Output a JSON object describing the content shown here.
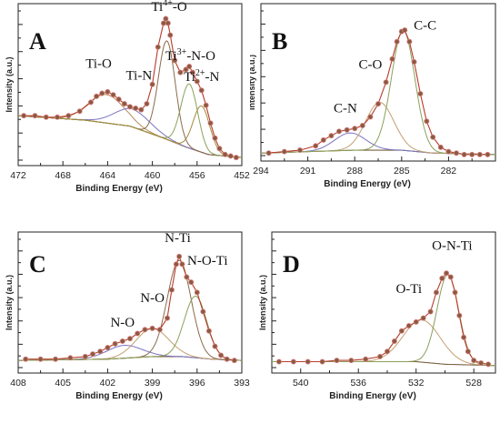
{
  "chart_data": [
    {
      "type": "line",
      "panel_label": "A",
      "xlabel": "Binding Energy (eV)",
      "ylabel": "Intensity (a.u.)",
      "xlim": [
        472,
        452
      ],
      "x_ticks": [
        472,
        468,
        464,
        460,
        456,
        452
      ],
      "ylim": [
        0,
        1
      ],
      "annotations": [
        {
          "text": "Ti-O",
          "x": 464.8,
          "y": 0.62
        },
        {
          "text": "Ti-N",
          "x": 461.2,
          "y": 0.54
        },
        {
          "text": "Ti",
          "sup": "4+",
          "suffix": "-O",
          "x": 458.5,
          "y": 1.0
        },
        {
          "text": "Ti",
          "sup": "3+",
          "suffix": "-N-O",
          "x": 456.6,
          "y": 0.67
        },
        {
          "text": "Ti",
          "sup": "2+",
          "suffix": "-N",
          "x": 455.6,
          "y": 0.53
        }
      ],
      "background": {
        "x": [
          472,
          466,
          462,
          459,
          457,
          455,
          452
        ],
        "y": [
          0.31,
          0.28,
          0.24,
          0.16,
          0.1,
          0.05,
          0.03
        ]
      },
      "components": [
        {
          "name": "Ti-O",
          "center": 464.1,
          "height": 0.19,
          "width": 1.6,
          "color": "#b78a5a"
        },
        {
          "name": "Ti-N",
          "center": 461.8,
          "height": 0.12,
          "width": 1.6,
          "color": "#7a74c2"
        },
        {
          "name": "Ti4+-O",
          "center": 458.7,
          "height": 0.66,
          "width": 0.75,
          "color": "#8a6a4a"
        },
        {
          "name": "Ti3+-N-O",
          "center": 456.7,
          "height": 0.43,
          "width": 0.75,
          "color": "#8aa05a"
        },
        {
          "name": "Ti2+-N",
          "center": 455.6,
          "height": 0.31,
          "width": 0.75,
          "color": "#a08a3a"
        }
      ],
      "x": [
        471.5,
        470.5,
        469.5,
        468.5,
        467.5,
        466.5,
        465.5,
        465,
        464.5,
        464,
        463.5,
        463,
        462.5,
        462,
        461.5,
        461,
        460.5,
        460,
        459.5,
        459,
        458.8,
        458.6,
        458.4,
        458,
        457.5,
        457,
        456.7,
        456.4,
        456,
        455.6,
        455.2,
        454.8,
        454.4,
        454,
        453.5,
        453,
        452.5
      ],
      "y": [
        0.31,
        0.31,
        0.3,
        0.3,
        0.31,
        0.34,
        0.4,
        0.44,
        0.46,
        0.47,
        0.45,
        0.42,
        0.39,
        0.37,
        0.36,
        0.35,
        0.39,
        0.52,
        0.77,
        0.93,
        0.96,
        0.93,
        0.85,
        0.68,
        0.6,
        0.62,
        0.64,
        0.6,
        0.54,
        0.48,
        0.38,
        0.26,
        0.16,
        0.09,
        0.05,
        0.04,
        0.03
      ]
    },
    {
      "type": "line",
      "panel_label": "B",
      "xlabel": "Binding Energy (eV)",
      "ylabel": "Intensity (a.u.)",
      "xlim": [
        294,
        279
      ],
      "x_ticks": [
        294,
        291,
        288,
        285,
        282
      ],
      "ylim": [
        0,
        1
      ],
      "annotations": [
        {
          "text": "C-N",
          "x": 288.6,
          "y": 0.3
        },
        {
          "text": "C-O",
          "x": 287.0,
          "y": 0.6
        },
        {
          "text": "C-C",
          "x": 283.5,
          "y": 0.87
        }
      ],
      "background": {
        "x": [
          294,
          288,
          285,
          283,
          279
        ],
        "y": [
          0.03,
          0.05,
          0.05,
          0.03,
          0.02
        ]
      },
      "components": [
        {
          "name": "C-N",
          "center": 288.3,
          "height": 0.12,
          "width": 1.0,
          "color": "#7a74c2"
        },
        {
          "name": "C-O",
          "center": 286.4,
          "height": 0.33,
          "width": 0.9,
          "color": "#c2a070"
        },
        {
          "name": "C-C",
          "center": 284.9,
          "height": 0.83,
          "width": 0.75,
          "color": "#8aa05a"
        }
      ],
      "x": [
        293.5,
        292.5,
        291.5,
        290.5,
        290,
        289.5,
        289,
        288.5,
        288,
        287.5,
        287,
        286.5,
        286,
        285.6,
        285.3,
        285,
        284.8,
        284.5,
        284.2,
        283.8,
        283.4,
        283,
        282.5,
        282,
        281.5,
        281,
        280.5,
        280,
        279.5
      ],
      "y": [
        0.03,
        0.04,
        0.05,
        0.08,
        0.12,
        0.15,
        0.18,
        0.19,
        0.2,
        0.22,
        0.28,
        0.37,
        0.52,
        0.68,
        0.8,
        0.87,
        0.88,
        0.8,
        0.66,
        0.44,
        0.25,
        0.14,
        0.07,
        0.04,
        0.03,
        0.02,
        0.02,
        0.02,
        0.02
      ]
    },
    {
      "type": "line",
      "panel_label": "C",
      "xlabel": "Binding Energy (eV)",
      "ylabel": "Intensity (a.u.)",
      "xlim": [
        408,
        393
      ],
      "x_ticks": [
        408,
        405,
        402,
        399,
        396,
        393
      ],
      "ylim": [
        0,
        1
      ],
      "annotations": [
        {
          "text": "N-O",
          "x": 401.0,
          "y": 0.32
        },
        {
          "text": "N-O",
          "x": 399.0,
          "y": 0.51
        },
        {
          "text": "N-Ti",
          "x": 397.3,
          "y": 0.98
        },
        {
          "text": "N-O-Ti",
          "x": 395.3,
          "y": 0.8
        }
      ],
      "background": {
        "x": [
          408,
          402,
          399,
          397,
          395,
          393
        ],
        "y": [
          0.07,
          0.08,
          0.1,
          0.1,
          0.08,
          0.07
        ]
      },
      "components": [
        {
          "name": "N-O",
          "center": 400.9,
          "height": 0.1,
          "width": 1.2,
          "color": "#7a74c2"
        },
        {
          "name": "N-O",
          "center": 399.0,
          "height": 0.22,
          "width": 1.1,
          "color": "#c2a070"
        },
        {
          "name": "N-Ti",
          "center": 397.2,
          "height": 0.75,
          "width": 0.8,
          "color": "#8a6a4a"
        },
        {
          "name": "N-O-Ti",
          "center": 396.1,
          "height": 0.48,
          "width": 0.75,
          "color": "#8aa05a"
        }
      ],
      "x": [
        407.5,
        406.5,
        405.5,
        404.5,
        403.5,
        403,
        402.5,
        402,
        401.5,
        401,
        400.5,
        400,
        399.5,
        399,
        398.5,
        398,
        397.7,
        397.4,
        397.2,
        397,
        396.7,
        396.4,
        396,
        395.6,
        395.2,
        394.8,
        394.4,
        394,
        393.5
      ],
      "y": [
        0.08,
        0.08,
        0.08,
        0.09,
        0.1,
        0.12,
        0.14,
        0.17,
        0.2,
        0.22,
        0.24,
        0.28,
        0.31,
        0.32,
        0.31,
        0.4,
        0.62,
        0.82,
        0.88,
        0.82,
        0.72,
        0.68,
        0.6,
        0.45,
        0.3,
        0.18,
        0.11,
        0.08,
        0.07
      ]
    },
    {
      "type": "line",
      "panel_label": "D",
      "xlabel": "Binding Energy (eV)",
      "ylabel": "Intensity (a.u.)",
      "xlim": [
        542,
        526.5
      ],
      "x_ticks": [
        540,
        536,
        532,
        528
      ],
      "ylim": [
        0,
        1
      ],
      "annotations": [
        {
          "text": "O-Ti",
          "x": 532.5,
          "y": 0.58
        },
        {
          "text": "O-N-Ti",
          "x": 529.5,
          "y": 0.92
        }
      ],
      "background": {
        "x": [
          542,
          535,
          532,
          530,
          526.5
        ],
        "y": [
          0.06,
          0.06,
          0.06,
          0.04,
          0.03
        ]
      },
      "components": [
        {
          "name": "O-Ti",
          "center": 531.6,
          "height": 0.33,
          "width": 1.3,
          "color": "#c2a070"
        },
        {
          "name": "O-N-Ti",
          "center": 529.8,
          "height": 0.7,
          "width": 0.75,
          "color": "#8aa05a"
        }
      ],
      "x": [
        541.5,
        540.5,
        539.5,
        538.5,
        537.5,
        536.5,
        535.5,
        534.5,
        534,
        533.5,
        533,
        532.5,
        532,
        531.5,
        531,
        530.6,
        530.2,
        529.9,
        529.6,
        529.3,
        529,
        528.7,
        528.4,
        528,
        527.5,
        527
      ],
      "y": [
        0.06,
        0.06,
        0.06,
        0.06,
        0.07,
        0.07,
        0.08,
        0.1,
        0.14,
        0.22,
        0.3,
        0.34,
        0.37,
        0.4,
        0.45,
        0.6,
        0.71,
        0.75,
        0.72,
        0.6,
        0.42,
        0.25,
        0.14,
        0.07,
        0.05,
        0.04
      ]
    }
  ]
}
